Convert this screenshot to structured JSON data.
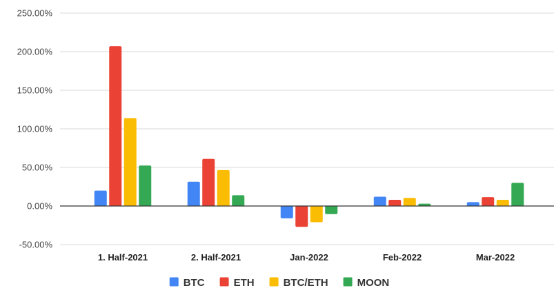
{
  "chart_data": {
    "type": "bar",
    "categories": [
      "1. Half-2021",
      "2. Half-2021",
      "Jan-2022",
      "Feb-2022",
      "Mar-2022"
    ],
    "series": [
      {
        "name": "BTC",
        "color": "#4285f4",
        "values": [
          20,
          31.5,
          -16,
          12,
          5
        ]
      },
      {
        "name": "ETH",
        "color": "#ea4335",
        "values": [
          207,
          61,
          -27,
          8,
          11.5
        ]
      },
      {
        "name": "BTC/ETH",
        "color": "#fbbc04",
        "values": [
          114,
          46.5,
          -21,
          10.5,
          8
        ]
      },
      {
        "name": "MOON",
        "color": "#34a853",
        "values": [
          52.5,
          14,
          -10.5,
          3,
          30
        ]
      }
    ],
    "ylim": [
      -50,
      250
    ],
    "yticks": [
      250,
      200,
      150,
      100,
      50,
      0,
      -50
    ],
    "ytick_labels": [
      "250.00%",
      "200.00%",
      "150.00%",
      "100.00%",
      "50.00%",
      "0.00%",
      "-50.00%"
    ],
    "grid": true,
    "legend_position": "bottom",
    "title": "",
    "xlabel": "",
    "ylabel": ""
  }
}
